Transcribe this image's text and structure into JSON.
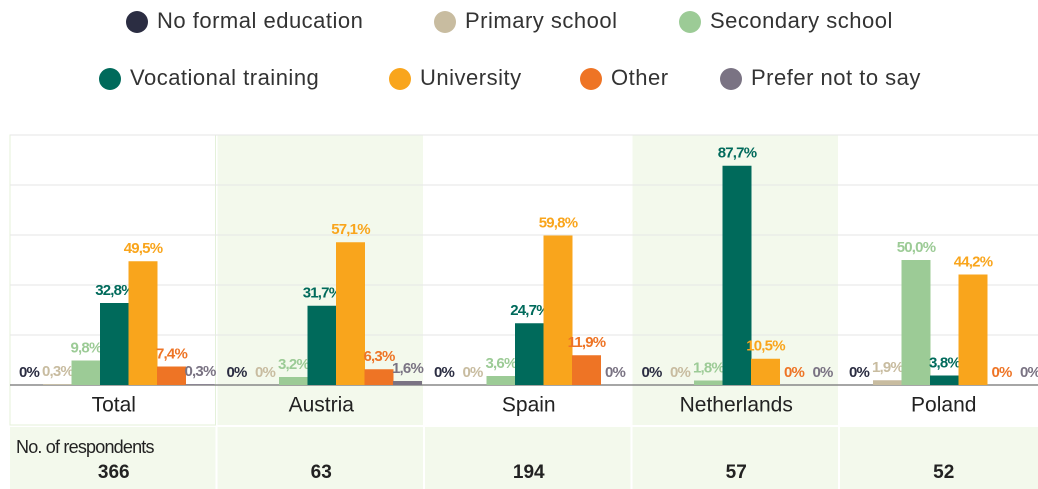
{
  "chart_data": {
    "type": "bar",
    "categories": [
      "Total",
      "Austria",
      "Spain",
      "Netherlands",
      "Poland"
    ],
    "series": [
      {
        "name": "No formal education",
        "color": "#2b2d42",
        "values": [
          0,
          0,
          0,
          0,
          0
        ],
        "value_labels": [
          "0%",
          "0%",
          "0%",
          "0%",
          "0%"
        ]
      },
      {
        "name": "Primary school",
        "color": "#c8bca0",
        "values": [
          0.3,
          0,
          0,
          0,
          1.9
        ],
        "value_labels": [
          "0,3%",
          "0%",
          "0%",
          "0%",
          "1,9%"
        ]
      },
      {
        "name": "Secondary school",
        "color": "#9ccb96",
        "values": [
          9.8,
          3.2,
          3.6,
          1.8,
          50.0
        ],
        "value_labels": [
          "9,8%",
          "3,2%",
          "3,6%",
          "1,8%",
          "50,0%"
        ]
      },
      {
        "name": "Vocational training",
        "color": "#006a5b",
        "values": [
          32.8,
          31.7,
          24.7,
          87.7,
          3.8
        ],
        "value_labels": [
          "32,8%",
          "31,7%",
          "24,7%",
          "87,7%",
          "3,8%"
        ]
      },
      {
        "name": "University",
        "color": "#f9a51c",
        "values": [
          49.5,
          57.1,
          59.8,
          10.5,
          44.2
        ],
        "value_labels": [
          "49,5%",
          "57,1%",
          "59,8%",
          "10,5%",
          "44,2%"
        ]
      },
      {
        "name": "Other",
        "color": "#ee7425",
        "values": [
          7.4,
          6.3,
          11.9,
          0,
          0
        ],
        "value_labels": [
          "7,4%",
          "6,3%",
          "11,9%",
          "0%",
          "0%"
        ]
      },
      {
        "name": "Prefer not to say",
        "color": "#7a7383",
        "values": [
          0.3,
          1.6,
          0,
          0,
          0
        ],
        "value_labels": [
          "0,3%",
          "1,6%",
          "0%",
          "0%",
          "0%"
        ]
      }
    ],
    "ylim": [
      0,
      100
    ],
    "yticks": [
      0,
      20,
      40,
      60,
      80,
      100
    ],
    "grid": true,
    "respondents_label": "No. of respondents",
    "respondents": [
      366,
      63,
      194,
      57,
      52
    ]
  }
}
